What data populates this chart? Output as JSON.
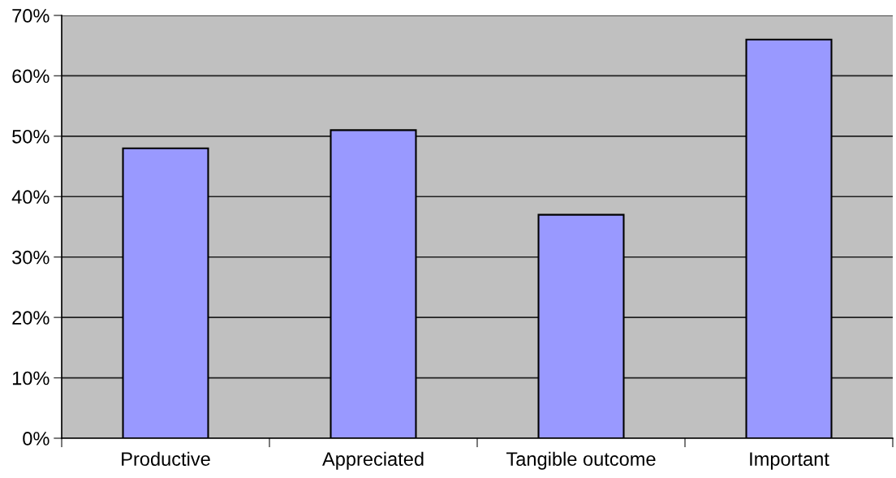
{
  "chart_data": {
    "type": "bar",
    "categories": [
      "Productive",
      "Appreciated",
      "Tangible outcome",
      "Important"
    ],
    "values": [
      48,
      51,
      37,
      66
    ],
    "color": "#9999ff",
    "ylim": [
      0,
      70
    ],
    "yticks": [
      {
        "value": 0,
        "label": "0%"
      },
      {
        "value": 10,
        "label": "10%"
      },
      {
        "value": 20,
        "label": "20%"
      },
      {
        "value": 30,
        "label": "30%"
      },
      {
        "value": 40,
        "label": "40%"
      },
      {
        "value": 50,
        "label": "50%"
      },
      {
        "value": 60,
        "label": "60%"
      },
      {
        "value": 70,
        "label": "70%"
      }
    ],
    "grid": "y",
    "legend": false
  }
}
